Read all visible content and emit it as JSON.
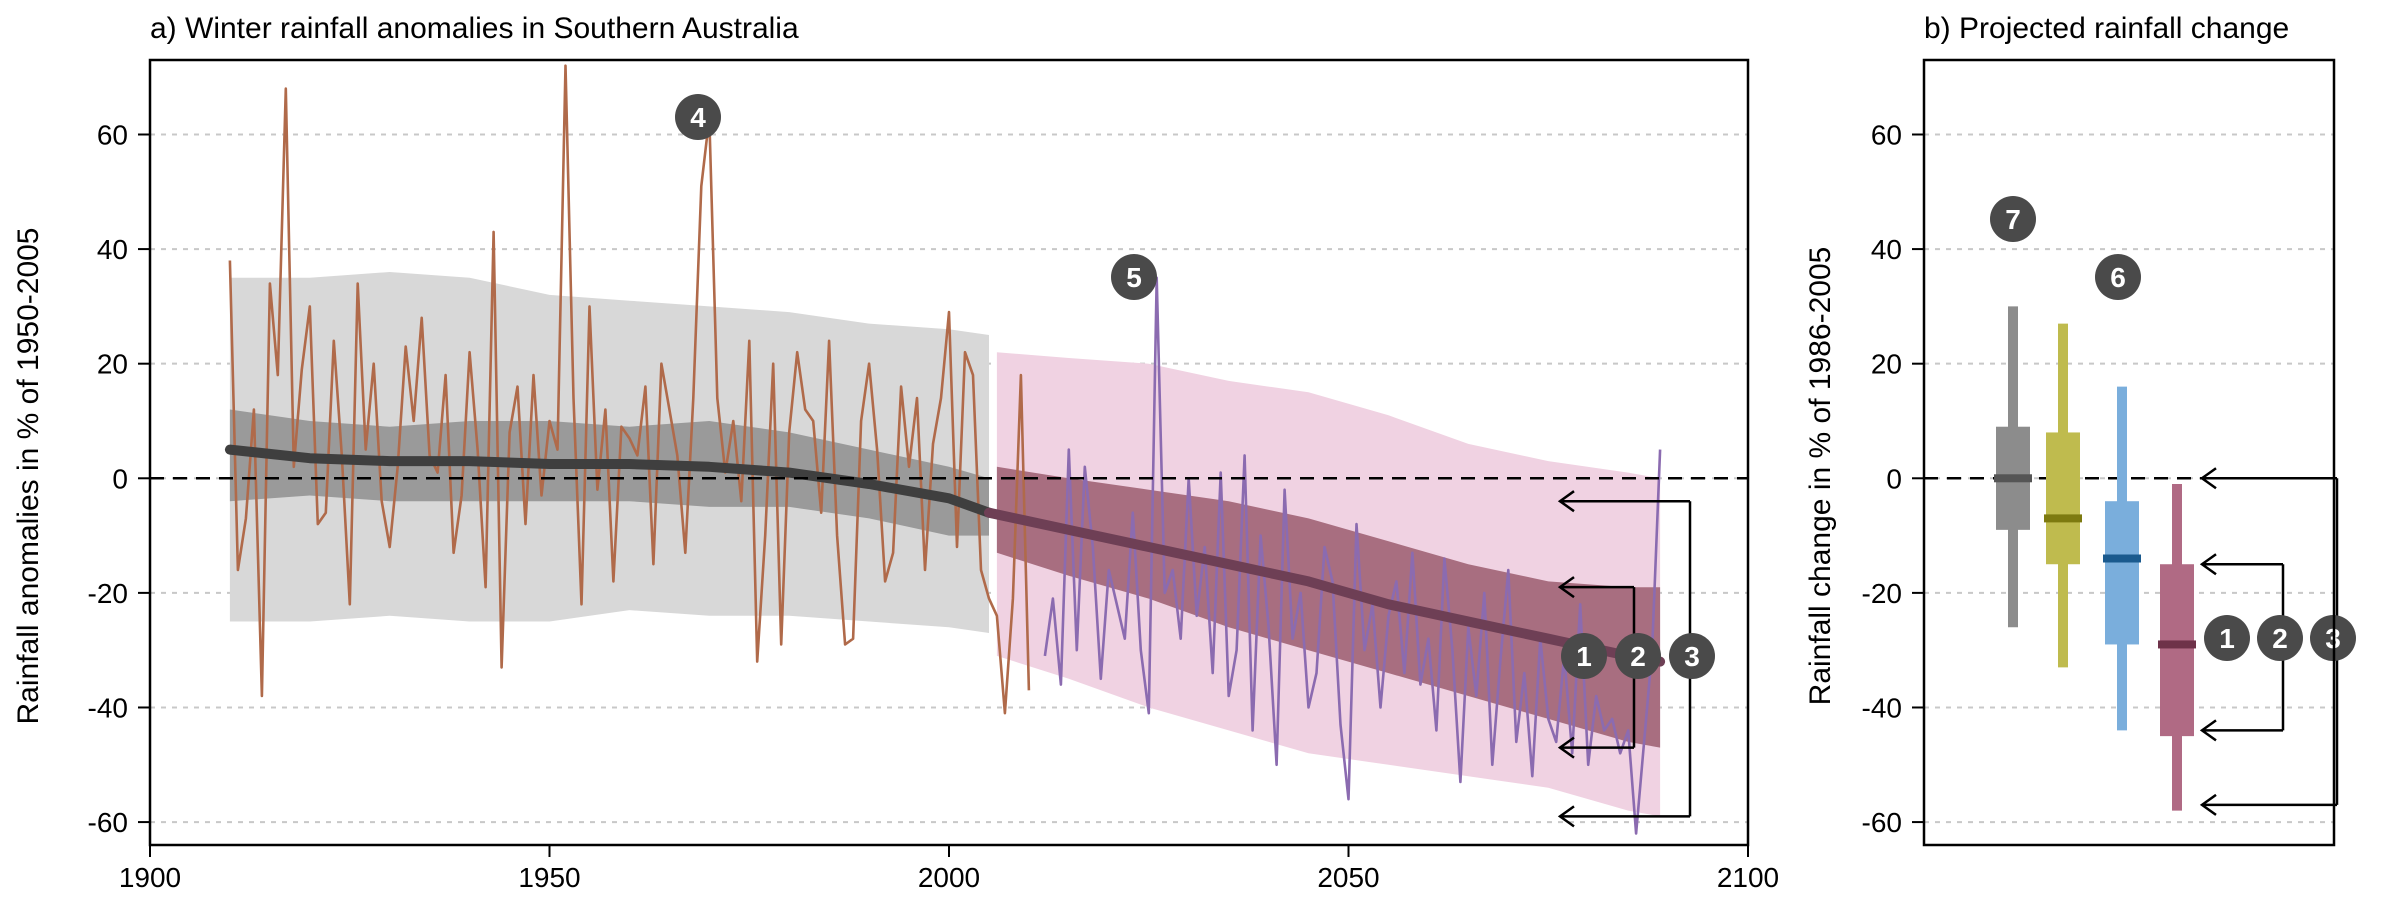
{
  "chart_data": [
    {
      "type": "line",
      "title": "a) Winter rainfall anomalies in Southern Australia",
      "xlabel": "",
      "ylabel": "Rainfall anomalies in % of 1950-2005",
      "xlim": [
        1900,
        2100
      ],
      "ylim": [
        -64,
        73
      ],
      "xticks": [
        "1900",
        "1950",
        "2000",
        "2050",
        "2100"
      ],
      "yticks": [
        "60",
        "40",
        "20",
        "0",
        "-20",
        "-40",
        "-60"
      ],
      "grid": "horizontal dotted",
      "reference_line": 0,
      "historical_envelope": {
        "x": [
          1910,
          1920,
          1930,
          1940,
          1950,
          1960,
          1970,
          1980,
          1990,
          2000,
          2005
        ],
        "upper_outer": [
          35,
          35,
          36,
          35,
          32,
          31,
          30,
          29,
          27,
          26,
          25
        ],
        "lower_outer": [
          -25,
          -25,
          -24,
          -25,
          -25,
          -23,
          -24,
          -24,
          -25,
          -26,
          -27
        ],
        "upper_inner": [
          12,
          10,
          9,
          10,
          10,
          9,
          10,
          8,
          5,
          2,
          0
        ],
        "lower_inner": [
          -4,
          -3,
          -4,
          -4,
          -4,
          -4,
          -5,
          -5,
          -7,
          -10,
          -10
        ]
      },
      "projected_envelope": {
        "x": [
          2006,
          2015,
          2025,
          2035,
          2045,
          2055,
          2065,
          2075,
          2085,
          2089
        ],
        "upper_outer": [
          22,
          21,
          20,
          17,
          15,
          11,
          6,
          3,
          1,
          0
        ],
        "lower_outer": [
          -31,
          -35,
          -40,
          -44,
          -48,
          -50,
          -52,
          -54,
          -58,
          -59
        ],
        "upper_inner": [
          2,
          0,
          -2,
          -4,
          -7,
          -11,
          -15,
          -18,
          -19,
          -19
        ],
        "lower_inner": [
          -13,
          -17,
          -21,
          -26,
          -30,
          -34,
          -38,
          -42,
          -46,
          -47
        ]
      },
      "ensemble_median": {
        "x": [
          1910,
          1920,
          1930,
          1940,
          1950,
          1960,
          1970,
          1980,
          1990,
          2000,
          2005,
          2015,
          2025,
          2035,
          2045,
          2055,
          2065,
          2075,
          2085,
          2089
        ],
        "values": [
          5,
          3.5,
          3,
          3,
          2.5,
          2.5,
          2,
          1,
          -1,
          -3.5,
          -6,
          -9,
          -12,
          -15,
          -18,
          -22,
          -25,
          -28,
          -31,
          -32
        ]
      },
      "observed": {
        "x": [
          1910,
          1911,
          1912,
          1913,
          1914,
          1915,
          1916,
          1917,
          1918,
          1919,
          1920,
          1921,
          1922,
          1923,
          1924,
          1925,
          1926,
          1927,
          1928,
          1929,
          1930,
          1931,
          1932,
          1933,
          1934,
          1935,
          1936,
          1937,
          1938,
          1939,
          1940,
          1941,
          1942,
          1943,
          1944,
          1945,
          1946,
          1947,
          1948,
          1949,
          1950,
          1951,
          1952,
          1953,
          1954,
          1955,
          1956,
          1957,
          1958,
          1959,
          1960,
          1961,
          1962,
          1963,
          1964,
          1965,
          1966,
          1967,
          1968,
          1969,
          1970,
          1971,
          1972,
          1973,
          1974,
          1975,
          1976,
          1977,
          1978,
          1979,
          1980,
          1981,
          1982,
          1983,
          1984,
          1985,
          1986,
          1987,
          1988,
          1989,
          1990,
          1991,
          1992,
          1993,
          1994,
          1995,
          1996,
          1997,
          1998,
          1999,
          2000,
          2001,
          2002,
          2003,
          2004,
          2005,
          2006,
          2007,
          2008,
          2009,
          2010
        ],
        "values": [
          38,
          -16,
          -7,
          12,
          -38,
          34,
          18,
          68,
          2,
          19,
          30,
          -8,
          -6,
          24,
          4,
          -22,
          34,
          5,
          20,
          -4,
          -12,
          2,
          23,
          10,
          28,
          4,
          1,
          18,
          -13,
          -3,
          22,
          5,
          -19,
          43,
          -33,
          8,
          16,
          -8,
          18,
          -3,
          10,
          5,
          72,
          14,
          -22,
          30,
          -2,
          12,
          -18,
          9,
          7,
          4,
          16,
          -15,
          20,
          12,
          4,
          -13,
          14,
          51,
          63,
          14,
          1,
          10,
          -4,
          24,
          -32,
          -10,
          20,
          -29,
          8,
          22,
          12,
          10,
          -6,
          24,
          -10,
          -29,
          -28,
          10,
          20,
          5,
          -18,
          -13,
          16,
          2,
          14,
          -16,
          6,
          14,
          29,
          -12,
          22,
          18,
          -16,
          -21,
          -24,
          -41,
          -21,
          18,
          -37
        ]
      },
      "projected_member": {
        "x": [
          2012,
          2013,
          2014,
          2015,
          2016,
          2017,
          2018,
          2019,
          2020,
          2021,
          2022,
          2023,
          2024,
          2025,
          2026,
          2027,
          2028,
          2029,
          2030,
          2031,
          2032,
          2033,
          2034,
          2035,
          2036,
          2037,
          2038,
          2039,
          2040,
          2041,
          2042,
          2043,
          2044,
          2045,
          2046,
          2047,
          2048,
          2049,
          2050,
          2051,
          2052,
          2053,
          2054,
          2055,
          2056,
          2057,
          2058,
          2059,
          2060,
          2061,
          2062,
          2063,
          2064,
          2065,
          2066,
          2067,
          2068,
          2069,
          2070,
          2071,
          2072,
          2073,
          2074,
          2075,
          2076,
          2077,
          2078,
          2079,
          2080,
          2081,
          2082,
          2083,
          2084,
          2085,
          2086,
          2087,
          2088,
          2089
        ],
        "values": [
          -31,
          -21,
          -36,
          5,
          -30,
          2,
          -12,
          -35,
          -16,
          -22,
          -28,
          -6,
          -30,
          -41,
          35,
          -20,
          -16,
          -28,
          0,
          -24,
          -12,
          -34,
          1,
          -38,
          -30,
          4,
          -44,
          -10,
          -26,
          -50,
          -2,
          -28,
          -20,
          -40,
          -34,
          -12,
          -18,
          -43,
          -56,
          -8,
          -30,
          -22,
          -40,
          -24,
          -18,
          -34,
          -13,
          -36,
          -28,
          -44,
          -14,
          -30,
          -53,
          -26,
          -38,
          -20,
          -50,
          -32,
          -16,
          -46,
          -34,
          -52,
          -28,
          -42,
          -46,
          -31,
          -48,
          -22,
          -50,
          -38,
          -44,
          -42,
          -48,
          -44,
          -62,
          -46,
          -30,
          5
        ]
      },
      "annotations": [
        "1",
        "2",
        "3",
        "4",
        "5"
      ]
    },
    {
      "type": "box",
      "title": "b) Projected rainfall change",
      "ylabel": "Rainfall change in % of 1986-2005",
      "ylim": [
        -64,
        73
      ],
      "yticks": [
        "60",
        "40",
        "20",
        "0",
        "-20",
        "-40",
        "-60"
      ],
      "grid": "horizontal dotted",
      "reference_line": 0,
      "boxes": [
        {
          "color": "#8c8c8c",
          "median_color": "#555555",
          "min": -26,
          "q1": -9,
          "median": 0,
          "q3": 9,
          "max": 30
        },
        {
          "color": "#bfbb4e",
          "median_color": "#7d7a10",
          "min": -33,
          "q1": -15,
          "median": -7,
          "q3": 8,
          "max": 27
        },
        {
          "color": "#7aaedc",
          "median_color": "#1a5a8e",
          "min": -44,
          "q1": -29,
          "median": -14,
          "q3": -4,
          "max": 16
        },
        {
          "color": "#b06a84",
          "median_color": "#6e3249",
          "min": -58,
          "q1": -45,
          "median": -29,
          "q3": -15,
          "max": -1
        }
      ],
      "annotations": [
        "1",
        "2",
        "3",
        "6",
        "7"
      ]
    }
  ],
  "colors": {
    "observed": "#b06a4a",
    "projected_member": "#8b6bb0",
    "hist_outer": "#d8d8d8",
    "hist_inner": "#9a9a9a",
    "proj_outer": "#f0d2e2",
    "proj_inner": "#a86e80",
    "hist_median": "#3f3f3f",
    "proj_median": "#6e3f55",
    "badge": "#4a4a4a"
  }
}
